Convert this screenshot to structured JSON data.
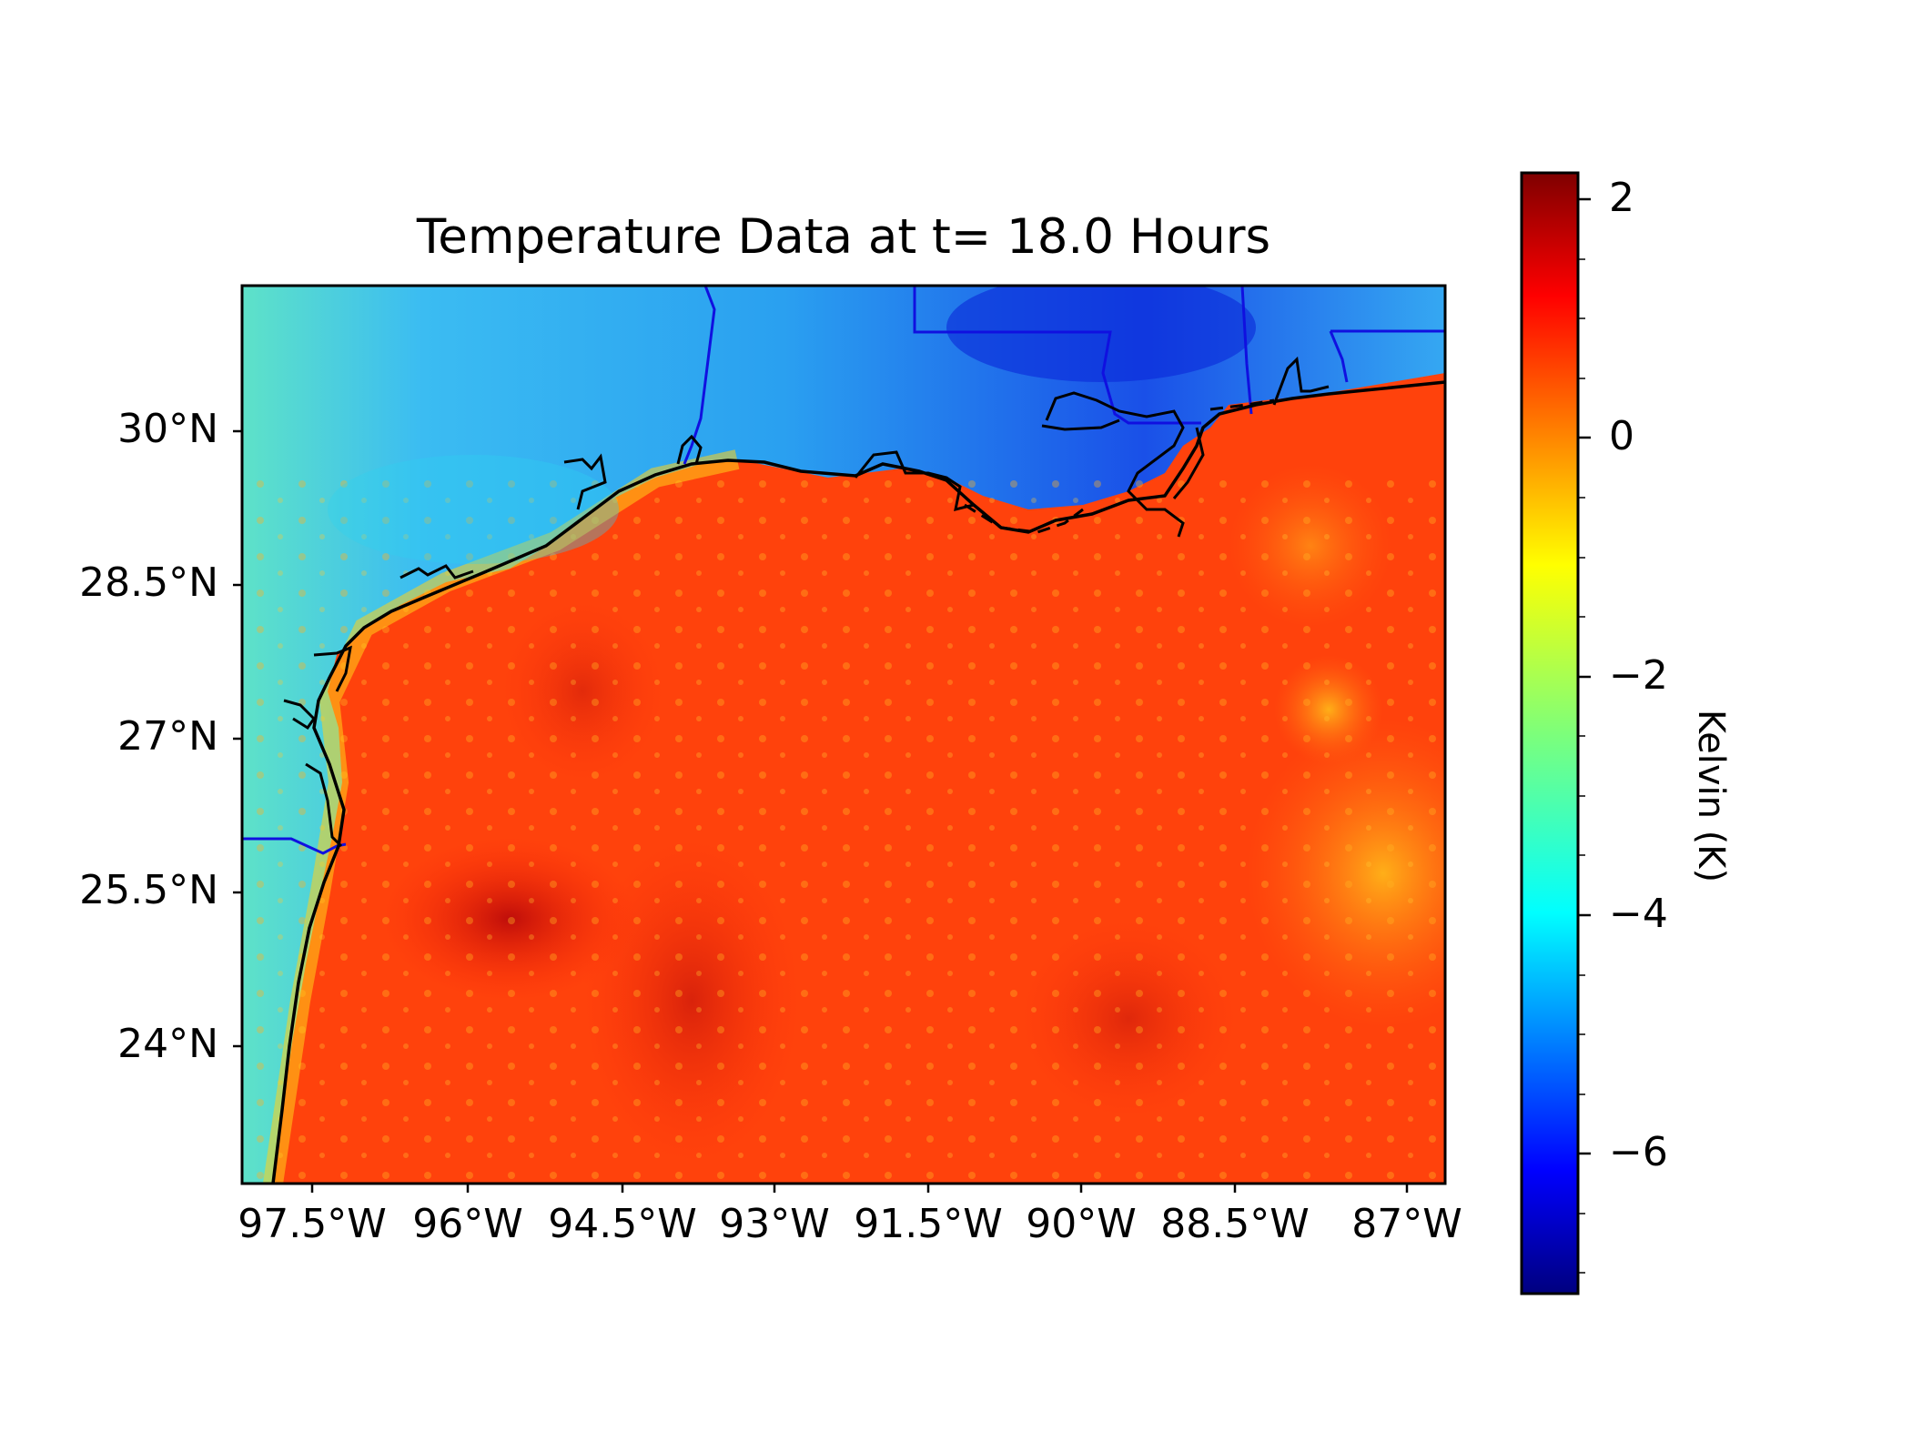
{
  "title": "Temperature Data at t= 18.0 Hours",
  "lat_labels": [
    "30°N",
    "28.5°N",
    "27°N",
    "25.5°N",
    "24°N"
  ],
  "lon_labels": [
    "97.5°W",
    "96°W",
    "94.5°W",
    "93°W",
    "91.5°W",
    "90°W",
    "88.5°W",
    "87°W"
  ],
  "colorbar": {
    "label": "Kelvin (K)",
    "ticks": [
      "2",
      "0",
      "−2",
      "−4",
      "−6"
    ],
    "range": [
      -7.2,
      2.2
    ],
    "colormap": "jet"
  },
  "colors": {
    "land_cold": "#1e6ef0",
    "land_cool": "#31c8f5",
    "gulf_warm": "#ff3a0a",
    "gulf_hot": "#c4100a",
    "coastline": "#000000",
    "state_borders": "#1010e0"
  }
}
